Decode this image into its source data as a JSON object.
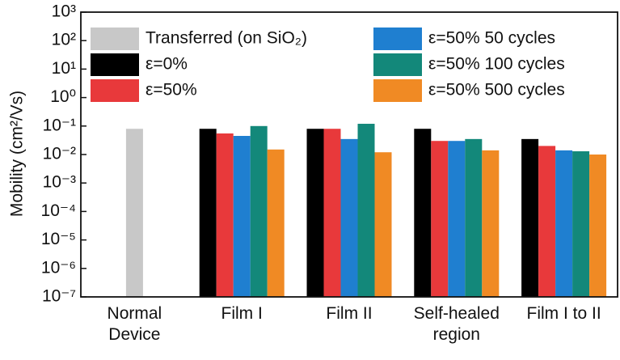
{
  "chart_data": {
    "type": "bar",
    "y_label": "Mobility (cm²/Vs)",
    "y_scale": "log",
    "categories": [
      "Normal Device",
      "Film I",
      "Film II",
      "Self-healed region",
      "Film I to II"
    ],
    "series": [
      {
        "name": "Transferred (on SiO₂)",
        "color": "#c8c8c8",
        "values": [
          0.08,
          null,
          null,
          null,
          null
        ]
      },
      {
        "name": "ε=0%",
        "color": "#000000",
        "values": [
          null,
          0.08,
          0.08,
          0.08,
          0.035
        ]
      },
      {
        "name": "ε=50%",
        "color": "#e8393b",
        "values": [
          null,
          0.055,
          0.08,
          0.03,
          0.02
        ]
      },
      {
        "name": "ε=50%  50 cycles",
        "color": "#1f7fd0",
        "values": [
          null,
          0.045,
          0.035,
          0.03,
          0.014
        ]
      },
      {
        "name": "ε=50% 100 cycles",
        "color": "#13887a",
        "values": [
          null,
          0.1,
          0.12,
          0.035,
          0.013
        ]
      },
      {
        "name": "ε=50% 500 cycles",
        "color": "#f08a24",
        "values": [
          null,
          0.015,
          0.012,
          0.014,
          0.01
        ]
      }
    ],
    "ylim": [
      1e-07,
      1000
    ],
    "yticks": [
      {
        "value": 1e-07,
        "label": "10⁻⁷"
      },
      {
        "value": 1e-06,
        "label": "10⁻⁶"
      },
      {
        "value": 1e-05,
        "label": "10⁻⁵"
      },
      {
        "value": 0.0001,
        "label": "10⁻⁴"
      },
      {
        "value": 0.001,
        "label": "10⁻³"
      },
      {
        "value": 0.01,
        "label": "10⁻²"
      },
      {
        "value": 0.1,
        "label": "10⁻¹"
      },
      {
        "value": 1,
        "label": "10⁰"
      },
      {
        "value": 10,
        "label": "10¹"
      },
      {
        "value": 100,
        "label": "10²"
      },
      {
        "value": 1000,
        "label": "10³"
      }
    ]
  }
}
